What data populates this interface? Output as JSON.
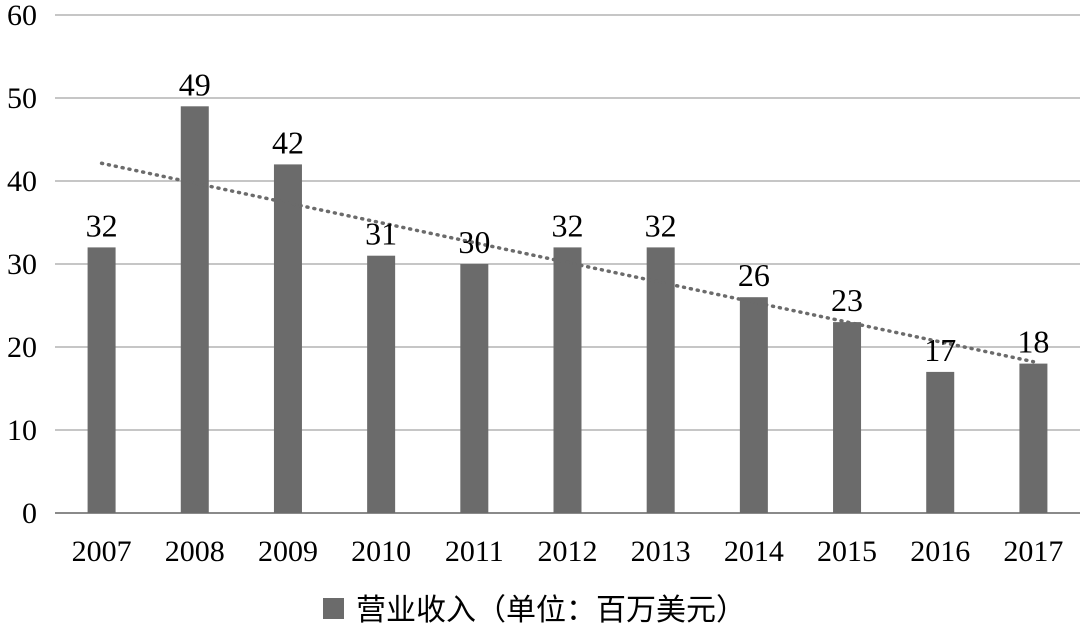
{
  "chart_data": {
    "type": "bar",
    "categories": [
      "2007",
      "2008",
      "2009",
      "2010",
      "2011",
      "2012",
      "2013",
      "2014",
      "2015",
      "2016",
      "2017"
    ],
    "series": [
      {
        "name": "营业收入（单位：百万美元）",
        "values": [
          32,
          49,
          42,
          31,
          30,
          32,
          32,
          26,
          23,
          17,
          18
        ],
        "color": "#6b6b6b"
      }
    ],
    "trendline": {
      "type": "linear",
      "style": "dotted",
      "color": "#6b6b6b"
    },
    "yticks": [
      "0",
      "10",
      "20",
      "30",
      "40",
      "50",
      "60"
    ],
    "ylim": [
      0,
      60
    ],
    "grid": true,
    "legend": "bottom",
    "title": "",
    "xlabel": "",
    "ylabel": ""
  }
}
